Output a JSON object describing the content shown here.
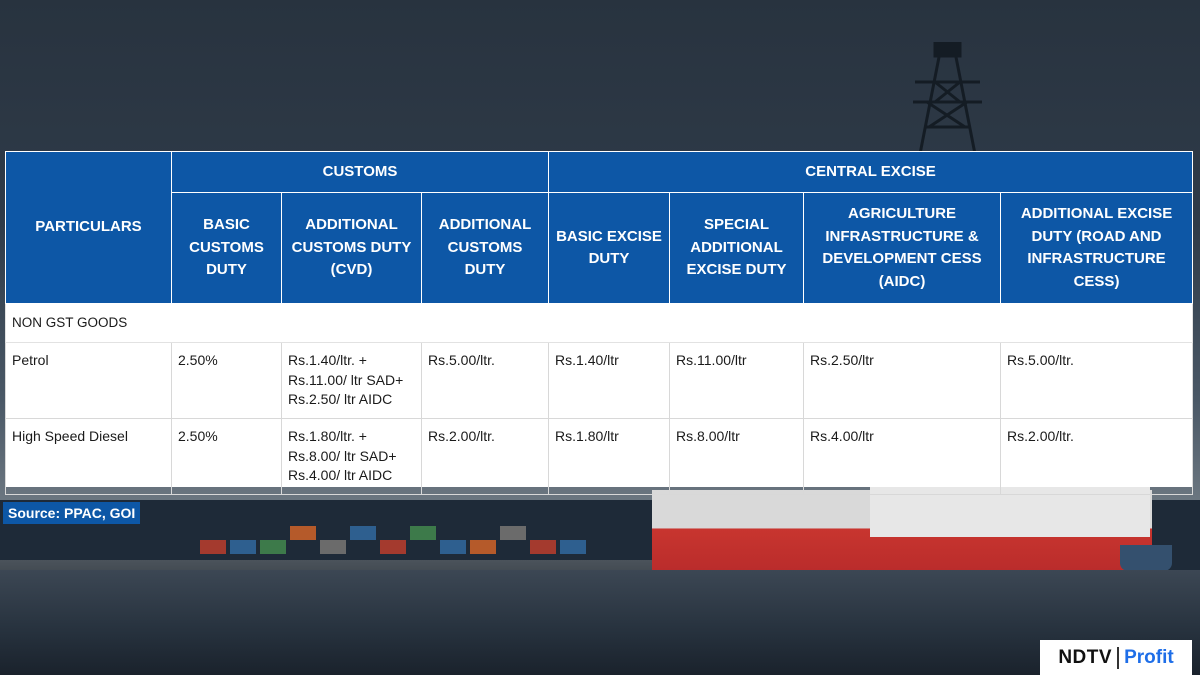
{
  "table": {
    "group_headers": [
      "CUSTOMS",
      "CENTRAL EXCISE"
    ],
    "particulars_label": "PARTICULARS",
    "sub_headers": [
      "BASIC CUSTOMS DUTY",
      "ADDITIONAL CUSTOMS DUTY (CVD)",
      "ADDITIONAL CUSTOMS DUTY",
      "BASIC EXCISE DUTY",
      "SPECIAL ADDITIONAL EXCISE DUTY",
      "AGRICULTURE INFRASTRUCTURE & DEVELOPMENT CESS (AIDC)",
      "ADDITIONAL EXCISE DUTY (ROAD AND INFRASTRUCTURE CESS)"
    ],
    "section_label": "NON GST GOODS",
    "rows": [
      {
        "particular": "Petrol",
        "cells": [
          [
            "2.50%"
          ],
          [
            "Rs.1.40/ltr. +",
            "Rs.11.00/ ltr SAD+",
            "Rs.2.50/ ltr AIDC"
          ],
          [
            "Rs.5.00/ltr."
          ],
          [
            "Rs.1.40/ltr"
          ],
          [
            "Rs.11.00/ltr"
          ],
          [
            "Rs.2.50/ltr"
          ],
          [
            "Rs.5.00/ltr."
          ]
        ]
      },
      {
        "particular": "High Speed Diesel",
        "cells": [
          [
            "2.50%"
          ],
          [
            "Rs.1.80/ltr. +",
            "Rs.8.00/ ltr SAD+",
            "Rs.4.00/ ltr AIDC"
          ],
          [
            "Rs.2.00/ltr."
          ],
          [
            "Rs.1.80/ltr"
          ],
          [
            "Rs.8.00/ltr"
          ],
          [
            "Rs.4.00/ltr"
          ],
          [
            "Rs.2.00/ltr."
          ]
        ]
      }
    ]
  },
  "source": "Source: PPAC, GOI",
  "logo": {
    "brand": "NDTV",
    "product": "Profit"
  },
  "colors": {
    "header_blue": "#0d57a6",
    "profit_blue": "#1e6ee8"
  }
}
